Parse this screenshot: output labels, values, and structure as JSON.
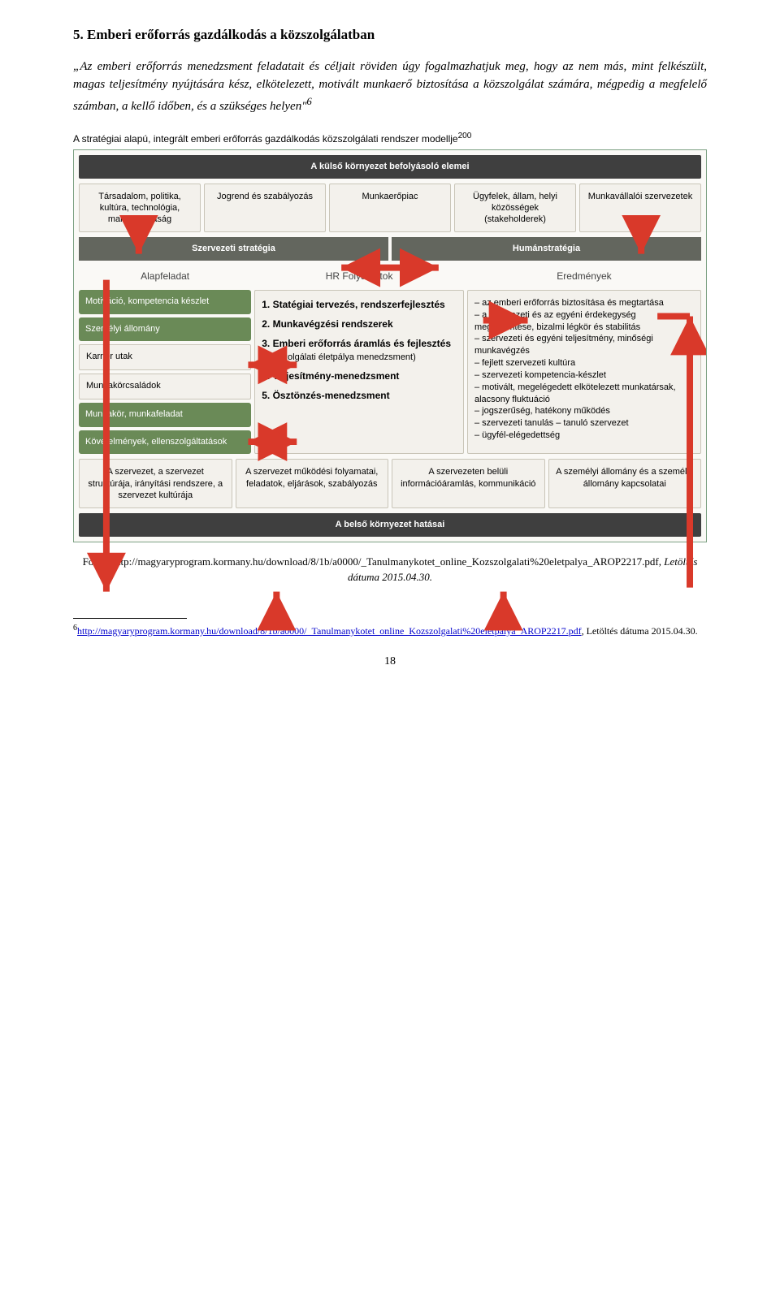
{
  "section": {
    "title": "5. Emberi erőforrás gazdálkodás a közszolgálatban",
    "paragraph": "„Az emberi erőforrás menedzsment feladatait és céljait röviden úgy fogalmazhatjuk meg, hogy az nem más, mint felkészült, magas teljesítmény nyújtására kész, elkötelezett, motivált munkaerő biztosítása a közszolgálat számára, mégpedig a megfelelő számban, a kellő időben, és a szükséges helyen\"",
    "footnote_mark": "6"
  },
  "figure": {
    "title_text": "A stratégiai alapú, integrált emberi erőforrás gazdálkodás közszolgálati rendszer modellje",
    "title_sup": "200",
    "top_bar": "A külső környezet befolyásoló elemei",
    "external_boxes": [
      "Társadalom, politika, kultúra, technológia, makrogazdaság",
      "Jogrend és szabályozás",
      "Munkaerőpiac",
      "Ügyfelek, állam, helyi közösségek (stakeholderek)",
      "Munkavállalói szervezetek"
    ],
    "strategy": {
      "left": "Szervezeti stratégia",
      "right": "Humánstratégia"
    },
    "cols": {
      "left_head": "Alapfeladat",
      "mid_head": "HR Folyamatok",
      "right_head": "Eredmények",
      "left_boxes": [
        {
          "text": "Motiváció, kompetencia készlet",
          "green": true
        },
        {
          "text": "Személyi állomány",
          "green": true
        },
        {
          "text": "Karrier utak",
          "green": false
        },
        {
          "text": "Munkakörcsaládok",
          "green": false
        },
        {
          "text": "Munkakör, munkafeladat",
          "green": true
        },
        {
          "text": "Követelmények, ellenszolgáltatások",
          "green": true
        }
      ],
      "mid_items": [
        {
          "n": "1.",
          "t": "Statégiai tervezés, rendszerfejlesztés"
        },
        {
          "n": "2.",
          "t": "Munkavégzési rendszerek"
        },
        {
          "n": "3.",
          "t": "Emberi erőforrás áramlás és fejlesztés",
          "sub": "(közszolgálati életpálya menedzsment)"
        },
        {
          "n": "4.",
          "t": "Teljesítmény-menedzsment"
        },
        {
          "n": "5.",
          "t": "Ösztönzés-menedzsment"
        }
      ],
      "right_items": [
        "– az emberi erőforrás biztosítása és megtartása",
        "– a szervezeti és az egyéni érdekegység megteremtése, bizalmi légkör és stabilitás",
        "– szervezeti és egyéni teljesítmény, minőségi munkavégzés",
        "– fejlett szervezeti kultúra",
        "– szervezeti kompetencia-készlet",
        "– motivált, megelégedett elkötelezett munkatársak, alacsony fluktuáció",
        "– jogszerűség, hatékony működés",
        "– szervezeti tanulás – tanuló szervezet",
        "– ügyfél-elégedettség"
      ]
    },
    "internal_boxes": [
      "A szervezet, a szervezet struktúrája, irányítási rendszere, a szervezet kultúrája",
      "A szervezet működési folyamatai, feladatok, eljárások, szabályozás",
      "A szervezeten belüli információáramlás, kommunikáció",
      "A személyi állomány és a személyi állomány kapcsolatai"
    ],
    "bottom_bar": "A belső környezet hatásai",
    "colors": {
      "green_boxes": [
        "#6a8a57",
        "#6a8a57",
        "#6a8a57",
        "#6a8a57"
      ],
      "arrow": "#d9392a"
    }
  },
  "source": {
    "prefix": "Forrás:",
    "url_text": "http://magyaryprogram.kormany.hu/download/8/1b/a0000/_Tanulmanykotet_online_Kozszolgalati%20eletpalya_AROP2217.pdf",
    "suffix": ", Letöltés dátuma 2015.04.30."
  },
  "footnote": {
    "mark": "6",
    "link_text": "http://magyaryprogram.kormany.hu/download/8/1b/a0000/_Tanulmanykotet_online_Kozszolgalati%20eletpalya_AROP2217.pdf",
    "tail": ", Letöltés dátuma 2015.04.30."
  },
  "page_number": "18"
}
